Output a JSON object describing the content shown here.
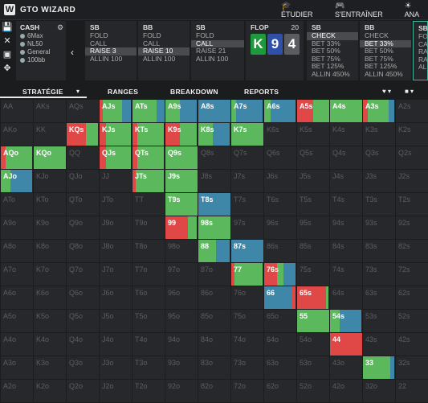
{
  "app": {
    "brand": "GTO WIZARD"
  },
  "nav": [
    {
      "label": "ÉTUDIER",
      "icon": "graduation-cap-icon",
      "glyph": "🎓"
    },
    {
      "label": "S'ENTRAÎNER",
      "icon": "gamepad-icon",
      "glyph": "🎮"
    },
    {
      "label": "ANA",
      "icon": "lightbulb-icon",
      "glyph": "☀"
    }
  ],
  "sidebar_icons": [
    "save-icon",
    "close-icon",
    "disk-icon",
    "move-icon"
  ],
  "game": {
    "title": "CASH",
    "format": "6Max",
    "stakes": "NL50",
    "rake": "General",
    "stack": "100bb"
  },
  "actions": [
    {
      "pos": "SB",
      "items": [
        "FOLD",
        "CALL",
        "RAISE 3",
        "ALLIN 100"
      ],
      "selected": 2
    },
    {
      "pos": "BB",
      "items": [
        "FOLD",
        "CALL",
        "RAISE 10",
        "ALLIN 100"
      ],
      "selected": 2
    },
    {
      "pos": "SB",
      "items": [
        "FOLD",
        "CALL",
        "RAISE 21",
        "ALLIN 100"
      ],
      "selected": 1
    },
    {
      "pos": "SB",
      "items": [
        "CHECK",
        "BET 33%",
        "BET 50%",
        "BET 75%",
        "BET 125%",
        "ALLIN 450%"
      ],
      "selected": 0
    },
    {
      "pos": "BB",
      "items": [
        "CHECK",
        "BET 33%",
        "BET 50%",
        "BET 75%",
        "BET 125%",
        "ALLIN 450%"
      ],
      "selected": 1
    },
    {
      "pos": "SB",
      "items": [
        "FO",
        "CA",
        "RA",
        "RA",
        "AL"
      ],
      "selected": -1
    }
  ],
  "flop": {
    "label": "FLOP",
    "pot": "20",
    "cards": [
      {
        "rank": "K",
        "color": "#1e9a3c"
      },
      {
        "rank": "9",
        "color": "#2f4fa8"
      },
      {
        "rank": "4",
        "color": "#5a5c62"
      }
    ]
  },
  "tabs": [
    "STRATÉGIE",
    "RANGES",
    "BREAKDOWN",
    "REPORTS"
  ],
  "colors": {
    "check": "#5bb85c",
    "bet_small": "#3f87a8",
    "bet_big": "#e04848",
    "allin": "#b13030",
    "empty": "#27282b"
  },
  "grid": {
    "labels": [
      [
        "AA",
        "AKs",
        "AQs",
        "AJs",
        "ATs",
        "A9s",
        "A8s",
        "A7s",
        "A6s",
        "A5s",
        "A4s",
        "A3s",
        "A2s"
      ],
      [
        "AKo",
        "KK",
        "KQs",
        "KJs",
        "KTs",
        "K9s",
        "K8s",
        "K7s",
        "K6s",
        "K5s",
        "K4s",
        "K3s",
        "K2s"
      ],
      [
        "AQo",
        "KQo",
        "QQ",
        "QJs",
        "QTs",
        "Q9s",
        "Q8s",
        "Q7s",
        "Q6s",
        "Q5s",
        "Q4s",
        "Q3s",
        "Q2s"
      ],
      [
        "AJo",
        "KJo",
        "QJo",
        "JJ",
        "JTs",
        "J9s",
        "J8s",
        "J7s",
        "J6s",
        "J5s",
        "J4s",
        "J3s",
        "J2s"
      ],
      [
        "ATo",
        "KTo",
        "QTo",
        "JTo",
        "TT",
        "T9s",
        "T8s",
        "T7s",
        "T6s",
        "T5s",
        "T4s",
        "T3s",
        "T2s"
      ],
      [
        "A9o",
        "K9o",
        "Q9o",
        "J9o",
        "T9o",
        "99",
        "98s",
        "97s",
        "96s",
        "95s",
        "94s",
        "93s",
        "92s"
      ],
      [
        "A8o",
        "K8o",
        "Q8o",
        "J8o",
        "T8o",
        "98o",
        "88",
        "87s",
        "86s",
        "85s",
        "84s",
        "83s",
        "82s"
      ],
      [
        "A7o",
        "K7o",
        "Q7o",
        "J7o",
        "T7o",
        "97o",
        "87o",
        "77",
        "76s",
        "75s",
        "74s",
        "73s",
        "72s"
      ],
      [
        "A6o",
        "K6o",
        "Q6o",
        "J6o",
        "T6o",
        "96o",
        "86o",
        "76o",
        "66",
        "65s",
        "64s",
        "63s",
        "62s"
      ],
      [
        "A5o",
        "K5o",
        "Q5o",
        "J5o",
        "T5o",
        "95o",
        "85o",
        "75o",
        "65o",
        "55",
        "54s",
        "53s",
        "52s"
      ],
      [
        "A4o",
        "K4o",
        "Q4o",
        "J4o",
        "T4o",
        "94o",
        "84o",
        "74o",
        "64o",
        "54o",
        "44",
        "43s",
        "42s"
      ],
      [
        "A3o",
        "K3o",
        "Q3o",
        "J3o",
        "T3o",
        "93o",
        "83o",
        "73o",
        "63o",
        "53o",
        "43o",
        "33",
        "32s"
      ],
      [
        "A2o",
        "K2o",
        "Q2o",
        "J2o",
        "T2o",
        "92o",
        "82o",
        "72o",
        "62o",
        "52o",
        "42o",
        "32o",
        "22"
      ]
    ],
    "strategy": {
      "AJs": [
        [
          "#e04848",
          0.1
        ],
        [
          "#5bb85c",
          0.6
        ],
        [
          "#3f87a8",
          0.3
        ]
      ],
      "ATs": [
        [
          "#5bb85c",
          0.75
        ],
        [
          "#3f87a8",
          0.25
        ]
      ],
      "A9s": [
        [
          "#5bb85c",
          0.45
        ],
        [
          "#3f87a8",
          0.55
        ]
      ],
      "A8s": [
        [
          "#3f87a8",
          1.0
        ]
      ],
      "A7s": [
        [
          "#5bb85c",
          0.15
        ],
        [
          "#3f87a8",
          0.85
        ]
      ],
      "A6s": [
        [
          "#5bb85c",
          0.2
        ],
        [
          "#3f87a8",
          0.8
        ]
      ],
      "A5s": [
        [
          "#e04848",
          0.5
        ],
        [
          "#5bb85c",
          0.5
        ]
      ],
      "A4s": [
        [
          "#5bb85c",
          1.0
        ]
      ],
      "A3s": [
        [
          "#e04848",
          0.15
        ],
        [
          "#5bb85c",
          0.65
        ],
        [
          "#3f87a8",
          0.2
        ]
      ],
      "KQs": [
        [
          "#e04848",
          0.6
        ],
        [
          "#5bb85c",
          0.4
        ]
      ],
      "KJs": [
        [
          "#e04848",
          0.2
        ],
        [
          "#5bb85c",
          0.8
        ]
      ],
      "KTs": [
        [
          "#e04848",
          0.15
        ],
        [
          "#5bb85c",
          0.85
        ]
      ],
      "K9s": [
        [
          "#e04848",
          0.45
        ],
        [
          "#5bb85c",
          0.55
        ]
      ],
      "K8s": [
        [
          "#5bb85c",
          0.45
        ],
        [
          "#3f87a8",
          0.55
        ]
      ],
      "K7s": [
        [
          "#5bb85c",
          1.0
        ]
      ],
      "AQo": [
        [
          "#e04848",
          0.15
        ],
        [
          "#5bb85c",
          0.85
        ]
      ],
      "KQo": [
        [
          "#5bb85c",
          1.0
        ]
      ],
      "QJs": [
        [
          "#e04848",
          0.2
        ],
        [
          "#5bb85c",
          0.8
        ]
      ],
      "QTs": [
        [
          "#e04848",
          0.15
        ],
        [
          "#5bb85c",
          0.85
        ]
      ],
      "Q9s": [
        [
          "#5bb85c",
          1.0
        ]
      ],
      "AJo": [
        [
          "#5bb85c",
          0.3
        ],
        [
          "#3f87a8",
          0.7
        ]
      ],
      "JTs": [
        [
          "#e04848",
          0.1
        ],
        [
          "#5bb85c",
          0.9
        ]
      ],
      "J9s": [
        [
          "#5bb85c",
          1.0
        ]
      ],
      "T9s": [
        [
          "#5bb85c",
          1.0
        ]
      ],
      "T8s": [
        [
          "#3f87a8",
          1.0
        ]
      ],
      "99": [
        [
          "#e04848",
          0.7
        ],
        [
          "#5bb85c",
          0.3
        ]
      ],
      "98s": [
        [
          "#5bb85c",
          1.0
        ]
      ],
      "88": [
        [
          "#5bb85c",
          0.55
        ],
        [
          "#3f87a8",
          0.45
        ]
      ],
      "87s": [
        [
          "#3f87a8",
          1.0
        ]
      ],
      "77": [
        [
          "#e04848",
          0.1
        ],
        [
          "#5bb85c",
          0.9
        ]
      ],
      "76s": [
        [
          "#e04848",
          0.4
        ],
        [
          "#5bb85c",
          0.2
        ],
        [
          "#3f87a8",
          0.4
        ]
      ],
      "66": [
        [
          "#3f87a8",
          0.85
        ],
        [
          "#e04848",
          0.15
        ]
      ],
      "65s": [
        [
          "#e04848",
          0.9
        ],
        [
          "#5bb85c",
          0.1
        ]
      ],
      "55": [
        [
          "#5bb85c",
          1.0
        ]
      ],
      "54s": [
        [
          "#5bb85c",
          0.3
        ],
        [
          "#3f87a8",
          0.7
        ]
      ],
      "44": [
        [
          "#e04848",
          1.0
        ]
      ],
      "33": [
        [
          "#5bb85c",
          0.85
        ],
        [
          "#3f87a8",
          0.15
        ]
      ]
    }
  }
}
